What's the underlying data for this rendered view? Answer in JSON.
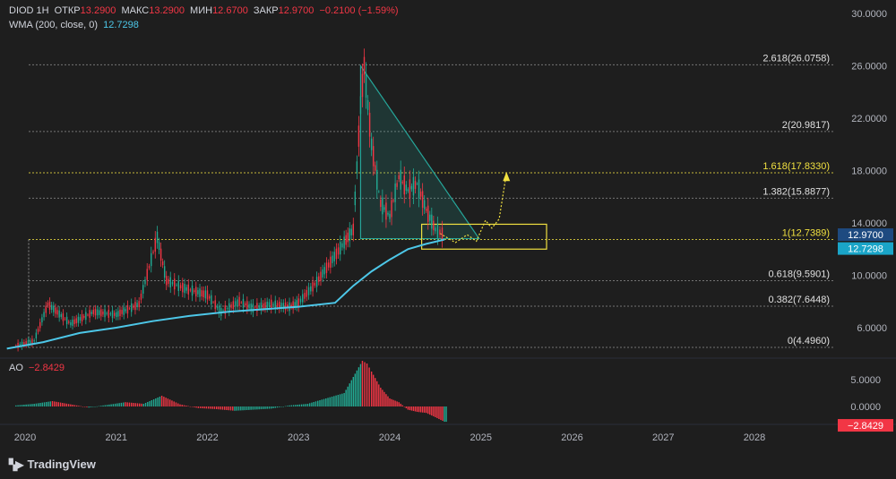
{
  "header": {
    "ticker": "DIOD",
    "interval": "1H",
    "open_label": "ОТКР",
    "open": "13.2900",
    "high_label": "МАКС",
    "high": "13.2900",
    "low_label": "МИН",
    "low": "12.6700",
    "close_label": "ЗАКР",
    "close": "12.9700",
    "change": "−0.2100 (−1.59%)",
    "wma_label": "WMA (200, close, 0)",
    "wma_value": "12.7298",
    "ao_label": "AO",
    "ao_value": "−2.8429"
  },
  "branding": {
    "logo_text": "TradingView"
  },
  "colors": {
    "background": "#1e1e1e",
    "up": "#22ab94",
    "down": "#f23645",
    "wma": "#4dc7e8",
    "fib_line": "#8a8a8a",
    "fib_highlight": "#f0e040",
    "triangle": "#26a69a"
  },
  "chart_data": {
    "type": "line",
    "x_ticks": [
      "2020",
      "2021",
      "2022",
      "2023",
      "2024",
      "2025",
      "2026",
      "2027",
      "2028"
    ],
    "y_ticks": [
      "30.0000",
      "26.0000",
      "22.0000",
      "18.0000",
      "14.0000",
      "10.0000",
      "6.0000"
    ],
    "ylim": [
      2.0,
      30.0
    ],
    "price_series": {
      "name": "DIOD",
      "x": [
        2019.9,
        2020.1,
        2020.25,
        2020.5,
        2020.75,
        2021.0,
        2021.25,
        2021.45,
        2021.55,
        2021.75,
        2022.0,
        2022.15,
        2022.35,
        2022.5,
        2022.7,
        2022.9,
        2023.0,
        2023.2,
        2023.35,
        2023.5,
        2023.6,
        2023.68,
        2023.72,
        2023.8,
        2023.9,
        2024.0,
        2024.1,
        2024.2,
        2024.3,
        2024.4,
        2024.5,
        2024.55,
        2024.6
      ],
      "values": [
        4.6,
        5.0,
        7.8,
        6.3,
        7.2,
        7.0,
        7.8,
        12.9,
        9.6,
        9.0,
        8.5,
        7.2,
        8.0,
        7.5,
        7.8,
        7.6,
        7.9,
        9.5,
        11.0,
        12.5,
        13.5,
        23.0,
        26.0,
        20.0,
        15.5,
        14.5,
        17.5,
        16.5,
        17.0,
        15.0,
        13.5,
        13.3,
        12.97
      ]
    },
    "wma_series": {
      "name": "WMA (200, close, 0)",
      "x": [
        2019.8,
        2020.2,
        2020.6,
        2021.0,
        2021.4,
        2021.8,
        2022.2,
        2022.6,
        2023.0,
        2023.4,
        2023.6,
        2023.8,
        2024.0,
        2024.2,
        2024.4,
        2024.6
      ],
      "values": [
        4.4,
        4.9,
        5.6,
        6.0,
        6.5,
        6.9,
        7.2,
        7.4,
        7.6,
        7.9,
        9.2,
        10.3,
        11.2,
        12.0,
        12.4,
        12.73
      ]
    },
    "fib_levels": [
      {
        "ratio": "2.618",
        "value": 26.0758,
        "label": "2.618(26.0758)"
      },
      {
        "ratio": "2",
        "value": 20.9817,
        "label": "2(20.9817)"
      },
      {
        "ratio": "1.618",
        "value": 17.833,
        "label": "1.618(17.8330)"
      },
      {
        "ratio": "1.382",
        "value": 15.8877,
        "label": "1.382(15.8877)"
      },
      {
        "ratio": "1",
        "value": 12.7389,
        "label": "1(12.7389)"
      },
      {
        "ratio": "0.618",
        "value": 9.5901,
        "label": "0.618(9.5901)"
      },
      {
        "ratio": "0.382",
        "value": 7.6448,
        "label": "0.382(7.6448)"
      },
      {
        "ratio": "0",
        "value": 4.496,
        "label": "0(4.4960)"
      }
    ],
    "price_badges": [
      {
        "value": 12.97,
        "label": "12.9700"
      },
      {
        "value": 12.7298,
        "label": "12.7298"
      }
    ],
    "ao": {
      "name": "AO",
      "y_ticks": [
        "5.0000",
        "0.0000"
      ],
      "last_label": "−2.8429",
      "ylim": [
        -3.5,
        9.0
      ],
      "x": [
        2019.9,
        2020.1,
        2020.3,
        2020.5,
        2020.7,
        2020.9,
        2021.1,
        2021.3,
        2021.5,
        2021.7,
        2021.9,
        2022.1,
        2022.3,
        2022.5,
        2022.7,
        2022.9,
        2023.1,
        2023.3,
        2023.5,
        2023.6,
        2023.7,
        2023.75,
        2023.8,
        2023.9,
        2024.0,
        2024.1,
        2024.2,
        2024.3,
        2024.4,
        2024.5,
        2024.6
      ],
      "values": [
        0.2,
        0.5,
        1.0,
        0.4,
        -0.2,
        0.3,
        0.8,
        0.5,
        2.0,
        0.4,
        -0.3,
        -0.5,
        -0.8,
        -0.6,
        -0.4,
        0.2,
        0.5,
        1.5,
        2.5,
        5.5,
        8.5,
        8.0,
        6.5,
        3.5,
        1.5,
        0.8,
        -0.6,
        -1.0,
        -1.2,
        -2.0,
        -2.8429
      ]
    }
  }
}
